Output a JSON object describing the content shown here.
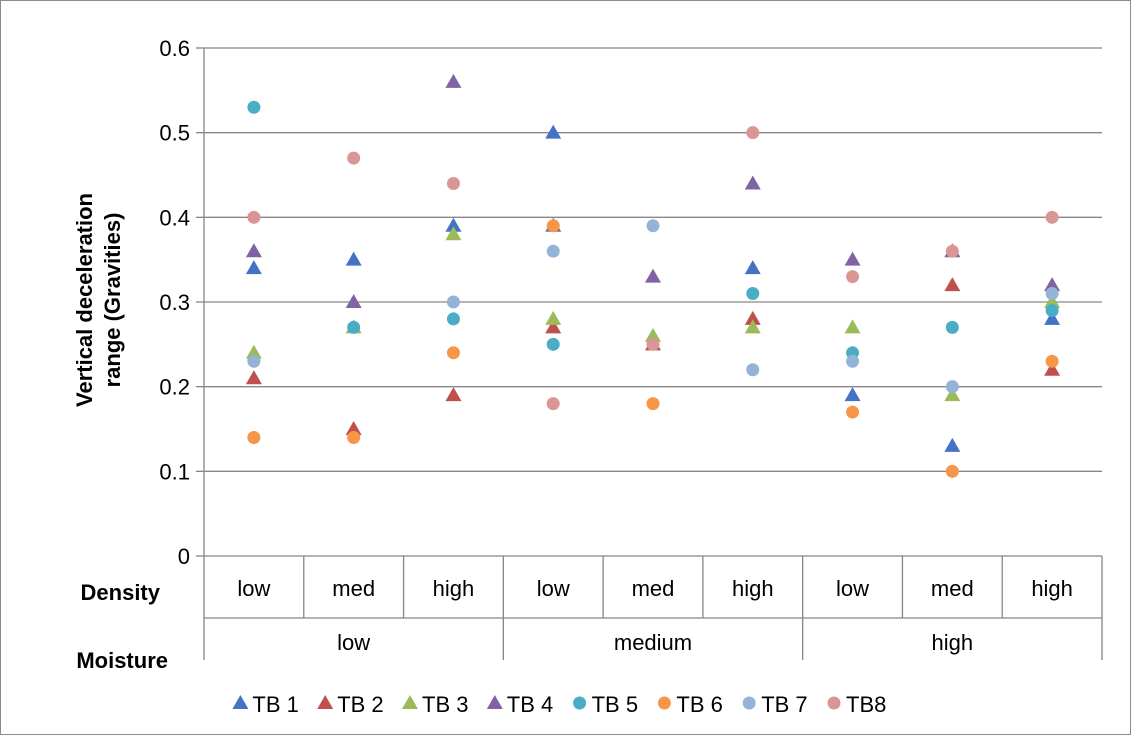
{
  "chart_data": {
    "type": "scatter",
    "title": "",
    "ylabel_line1": "Vertical deceleration",
    "ylabel_line2": "range (Gravities)",
    "ylim": [
      0,
      0.6
    ],
    "yticks": [
      "0",
      "0.1",
      "0.2",
      "0.3",
      "0.4",
      "0.5",
      "0.6"
    ],
    "ytick_values": [
      0,
      0.1,
      0.2,
      0.3,
      0.4,
      0.5,
      0.6
    ],
    "grid": true,
    "legend_position": "bottom",
    "row_headers": {
      "density": "Density",
      "moisture": "Moisture"
    },
    "categories_density": [
      "low",
      "med",
      "high",
      "low",
      "med",
      "high",
      "low",
      "med",
      "high"
    ],
    "categories_moisture": [
      "low",
      "medium",
      "high"
    ],
    "series": [
      {
        "name": "TB 1",
        "marker": "triangle",
        "color": "#4472C4",
        "values": [
          0.34,
          0.35,
          0.39,
          0.5,
          null,
          0.34,
          0.19,
          0.13,
          0.28
        ]
      },
      {
        "name": "TB 2",
        "marker": "triangle",
        "color": "#C0504D",
        "values": [
          0.21,
          0.15,
          0.19,
          0.27,
          0.25,
          0.28,
          null,
          0.32,
          0.22
        ]
      },
      {
        "name": "TB 3",
        "marker": "triangle",
        "color": "#9BBB59",
        "values": [
          0.24,
          0.27,
          0.38,
          0.28,
          0.26,
          0.27,
          0.27,
          0.19,
          0.3
        ]
      },
      {
        "name": "TB 4",
        "marker": "triangle",
        "color": "#8064A2",
        "values": [
          0.36,
          0.3,
          0.56,
          0.39,
          0.33,
          0.44,
          0.35,
          0.36,
          0.32
        ]
      },
      {
        "name": "TB 5",
        "marker": "circle",
        "color": "#4BACC6",
        "values": [
          0.53,
          0.27,
          0.28,
          0.25,
          null,
          0.31,
          0.24,
          0.27,
          0.29
        ]
      },
      {
        "name": "TB 6",
        "marker": "circle",
        "color": "#F79646",
        "values": [
          0.14,
          0.14,
          0.24,
          0.39,
          0.18,
          null,
          0.17,
          0.1,
          0.23
        ]
      },
      {
        "name": "TB 7",
        "marker": "circle",
        "color": "#95B3D7",
        "values": [
          0.23,
          null,
          0.3,
          0.36,
          0.39,
          0.22,
          0.23,
          0.2,
          0.31
        ]
      },
      {
        "name": "TB8",
        "marker": "circle",
        "color": "#D99694",
        "values": [
          0.4,
          0.47,
          0.44,
          0.18,
          0.25,
          0.5,
          0.33,
          0.36,
          0.4
        ]
      }
    ]
  }
}
